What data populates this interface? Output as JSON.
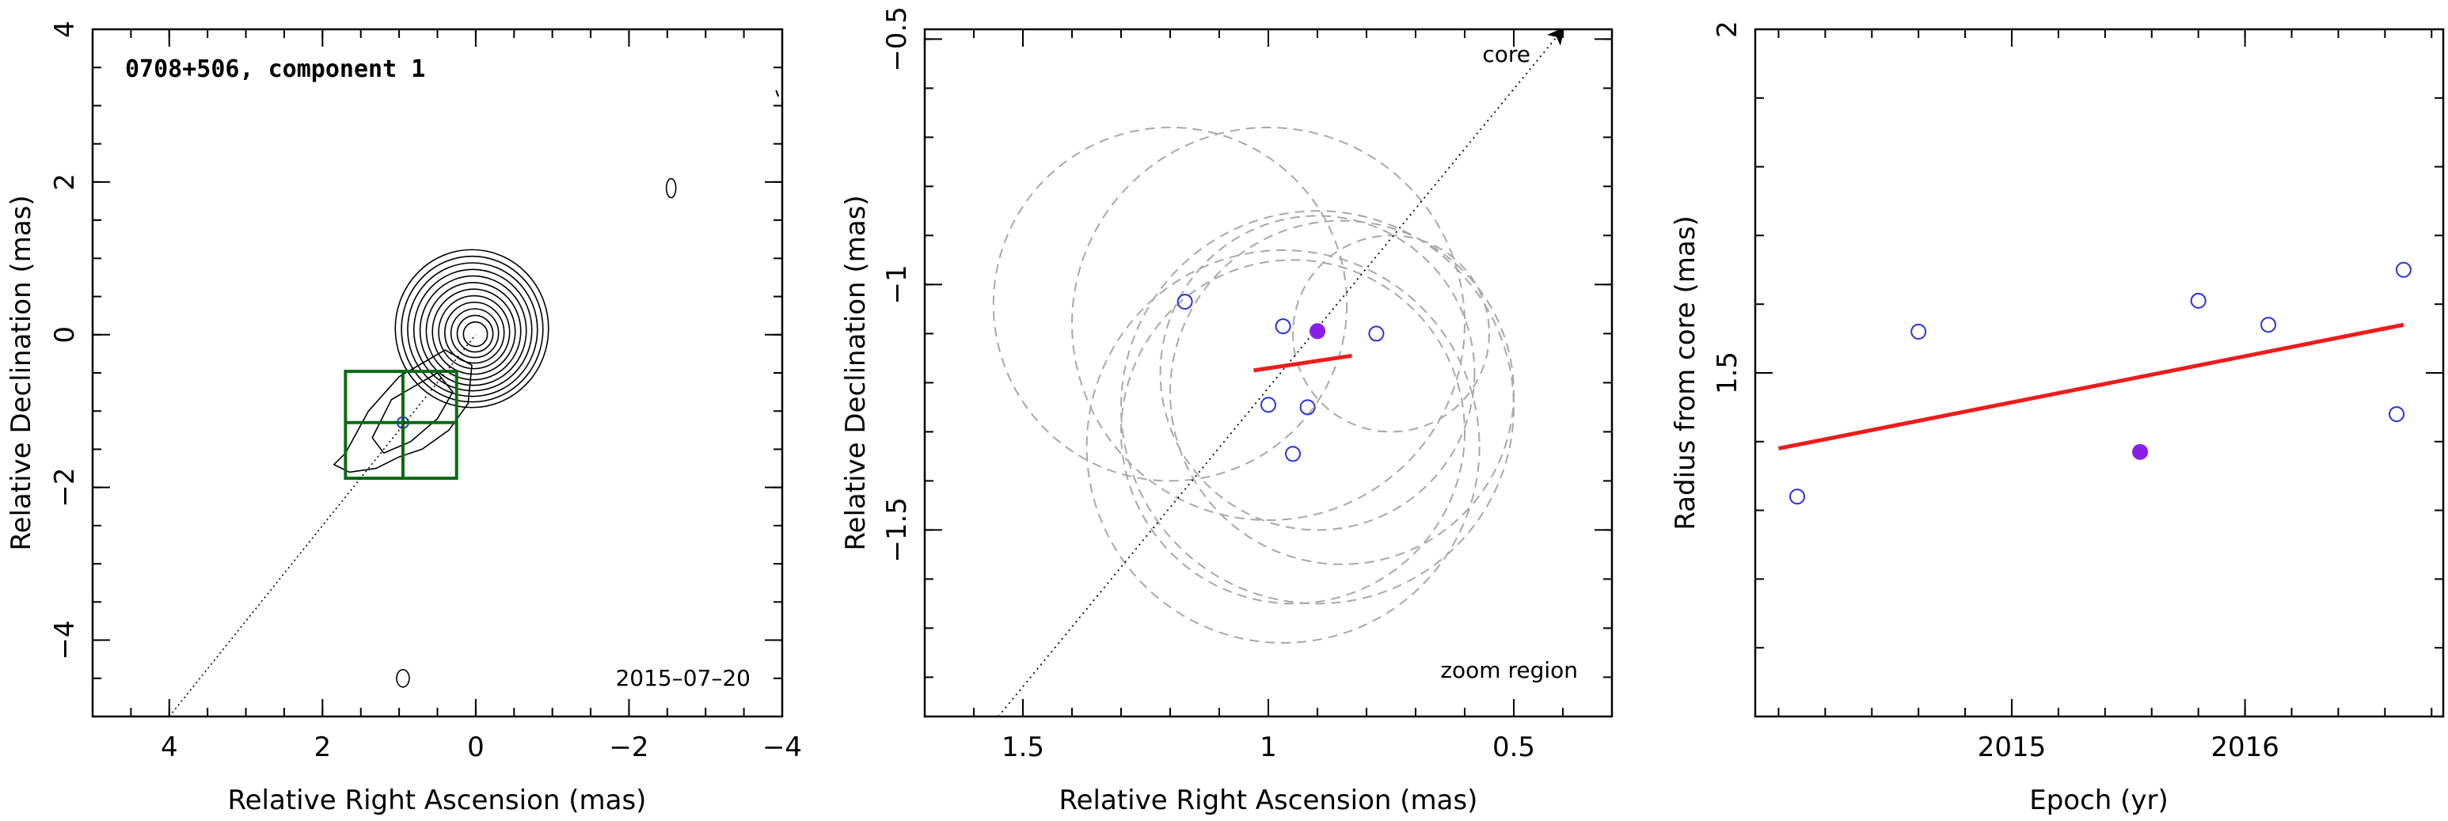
{
  "chart_data": [
    {
      "type": "contour",
      "panel": "map",
      "title": "0708+506, component 1",
      "date_label": "2015–07–20",
      "xlabel": "Relative Right Ascension (mas)",
      "ylabel": "Relative Declination (mas)",
      "xlim": [
        5,
        -4
      ],
      "ylim": [
        -5,
        4
      ],
      "xticks": [
        4,
        2,
        0,
        -2,
        -4
      ],
      "xtick_labels": [
        "4",
        "2",
        "0",
        "−2",
        "−4"
      ],
      "yticks": [
        -4,
        -2,
        0,
        2,
        4
      ],
      "ytick_labels": [
        "−4",
        "−2",
        "0",
        "2",
        "4"
      ],
      "core_position": [
        0,
        0
      ],
      "component_position": [
        0.95,
        -1.15
      ],
      "zoom_box": {
        "x_range": [
          1.7,
          0.25
        ],
        "y_range": [
          -1.88,
          -0.48
        ]
      },
      "trajectory_line": {
        "from": [
          4.0,
          -5.0
        ],
        "to": [
          0,
          0
        ]
      },
      "contour_levels": 12
    },
    {
      "type": "scatter",
      "panel": "zoom",
      "corner_label": "zoom region",
      "arrow_label": "core",
      "xlabel": "Relative Right Ascension (mas)",
      "ylabel": "Relative Declination (mas)",
      "xlim": [
        1.7,
        0.3
      ],
      "ylim": [
        -1.88,
        -0.48
      ],
      "xticks": [
        1.5,
        1.0,
        0.5
      ],
      "xtick_labels": [
        "1.5",
        "1",
        "0.5"
      ],
      "yticks": [
        -1.5,
        -1.0,
        -0.5
      ],
      "ytick_labels": [
        "−1.5",
        "−1",
        "−0.5"
      ],
      "open_points": [
        {
          "x": 1.17,
          "y": -1.035
        },
        {
          "x": 0.97,
          "y": -1.085
        },
        {
          "x": 0.78,
          "y": -1.1
        },
        {
          "x": 1.0,
          "y": -1.245
        },
        {
          "x": 0.92,
          "y": -1.25
        },
        {
          "x": 0.95,
          "y": -1.345
        }
      ],
      "filled_point": {
        "x": 0.9,
        "y": -1.095
      },
      "fit_segment": {
        "from": [
          1.03,
          -1.175
        ],
        "to": [
          0.83,
          -1.145
        ]
      },
      "error_circles": [
        {
          "cx": 1.2,
          "cy": -1.04,
          "r": 0.36
        },
        {
          "cx": 1.0,
          "cy": -1.08,
          "r": 0.4
        },
        {
          "cx": 0.9,
          "cy": -1.18,
          "r": 0.32
        },
        {
          "cx": 0.85,
          "cy": -1.22,
          "r": 0.35
        },
        {
          "cx": 0.9,
          "cy": -1.25,
          "r": 0.4
        },
        {
          "cx": 0.95,
          "cy": -1.3,
          "r": 0.35
        },
        {
          "cx": 0.97,
          "cy": -1.33,
          "r": 0.4
        },
        {
          "cx": 0.75,
          "cy": -1.1,
          "r": 0.2
        }
      ],
      "trajectory_line": {
        "from": [
          1.55,
          -1.88
        ],
        "to": [
          0.4,
          -0.48
        ]
      }
    },
    {
      "type": "scatter",
      "panel": "radius",
      "xlabel": "Epoch (yr)",
      "ylabel": "Radius from core (mas)",
      "xlim": [
        2013.9,
        2016.85
      ],
      "ylim": [
        1.0,
        2.0
      ],
      "xticks": [
        2015,
        2016
      ],
      "xtick_labels": [
        "2015",
        "2016"
      ],
      "yticks": [
        1.5,
        2.0
      ],
      "ytick_labels": [
        "1.5",
        "2"
      ],
      "open_points": [
        {
          "x": 2014.08,
          "y": 1.32
        },
        {
          "x": 2014.6,
          "y": 1.56
        },
        {
          "x": 2015.8,
          "y": 1.605
        },
        {
          "x": 2016.1,
          "y": 1.57
        },
        {
          "x": 2016.65,
          "y": 1.44
        },
        {
          "x": 2016.68,
          "y": 1.65
        }
      ],
      "filled_point": {
        "x": 2015.55,
        "y": 1.385
      },
      "fit_line": {
        "from": [
          2014.0,
          1.39
        ],
        "to": [
          2016.68,
          1.57
        ]
      }
    }
  ],
  "colors": {
    "axes": "#000000",
    "open_marker": "#2a32e0",
    "filled_marker": "#8a1ee8",
    "fit_line": "#ee1c1c",
    "error_circle": "#a8a8a8",
    "zoom_box": "#0a6a12",
    "contour": "#000000"
  }
}
